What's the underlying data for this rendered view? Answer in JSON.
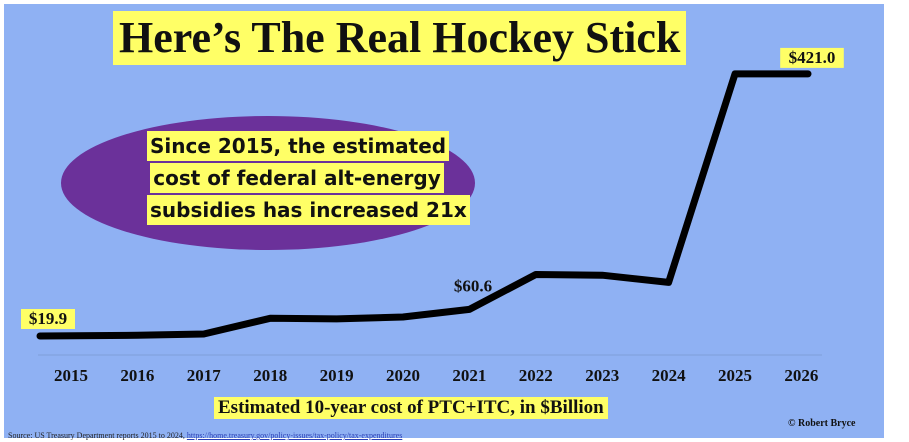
{
  "chart_data": {
    "type": "line",
    "title": "Here’s The Real Hockey Stick",
    "xlabel": "Estimated 10-year cost of PTC+ITC, in $Billion",
    "ylabel": "",
    "categories": [
      "2015",
      "2016",
      "2017",
      "2018",
      "2019",
      "2020",
      "2021",
      "2022",
      "2023",
      "2024",
      "2025",
      "2026"
    ],
    "series": [
      {
        "values": [
          19.9,
          21,
          23,
          47,
          46,
          49,
          60.6,
          114,
          113,
          102,
          421.0,
          421.0
        ]
      }
    ],
    "ylim": [
      0,
      450
    ],
    "grid": false,
    "line_color": "#000000",
    "data_labels": [
      {
        "index": 0,
        "text": "$19.9"
      },
      {
        "index": 6,
        "text": "$60.6"
      },
      {
        "index": 10,
        "text": "$421.0"
      }
    ]
  },
  "callout": {
    "lines": [
      "Since 2015, the estimated",
      "cost of federal alt-energy",
      "subsidies has increased 21x"
    ]
  },
  "credit": "© Robert Bryce",
  "source": {
    "text": "Source: US Treasury Department reports 2015 to 2024, ",
    "link": "https://home.treasury.gov/policy-issues/tax-policy/tax-expenditures"
  },
  "colors": {
    "background": "#8fb1f3",
    "highlight": "#ffff66",
    "ellipse": "#6b319a"
  }
}
